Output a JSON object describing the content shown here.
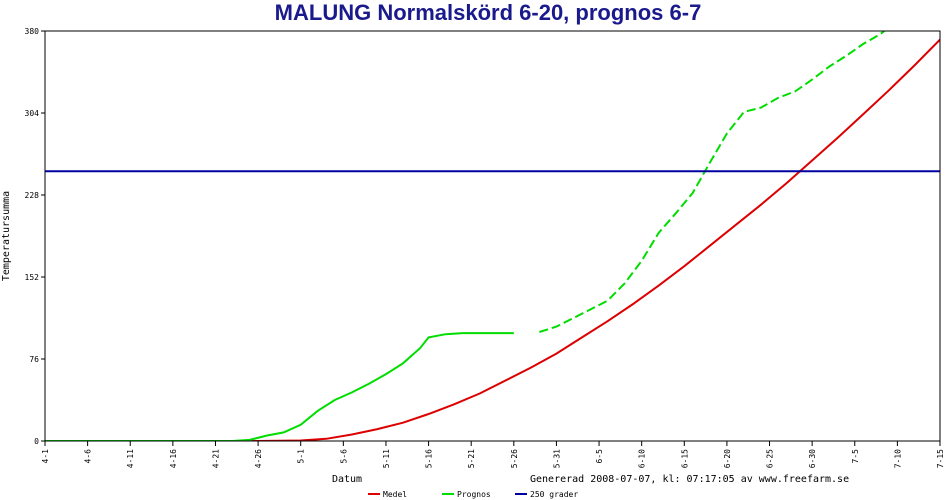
{
  "chart_data": {
    "type": "line",
    "title": "MALUNG Normalskörd 6-20, prognos 6-7",
    "xlabel": "Datum",
    "ylabel": "Temperatursumma",
    "footer": "Genererad 2008-07-07, kl: 07:17:05 av www.freefarm.se",
    "x_ticks": [
      "4-1",
      "4-6",
      "4-11",
      "4-16",
      "4-21",
      "4-26",
      "5-1",
      "5-6",
      "5-11",
      "5-16",
      "5-21",
      "5-26",
      "5-31",
      "6-5",
      "6-10",
      "6-15",
      "6-20",
      "6-25",
      "6-30",
      "7-5",
      "7-10",
      "7-15"
    ],
    "y_ticks": [
      0,
      76,
      152,
      228,
      304,
      380
    ],
    "ylim": [
      0,
      380
    ],
    "xlim_days": [
      0,
      105
    ],
    "grid": false,
    "legend_placement": "bottom",
    "series": [
      {
        "name": "Medel",
        "color": "#dd0000",
        "style": "solid",
        "points": [
          [
            0,
            0
          ],
          [
            25,
            0
          ],
          [
            30,
            0.5
          ],
          [
            33,
            2
          ],
          [
            36,
            6
          ],
          [
            39,
            11
          ],
          [
            42,
            17
          ],
          [
            45,
            25
          ],
          [
            48,
            34
          ],
          [
            51,
            44
          ],
          [
            54,
            56
          ],
          [
            57,
            68
          ],
          [
            60,
            81
          ],
          [
            63,
            96
          ],
          [
            66,
            111
          ],
          [
            69,
            127
          ],
          [
            72,
            144
          ],
          [
            75,
            162
          ],
          [
            78,
            181
          ],
          [
            81,
            200
          ],
          [
            84,
            219
          ],
          [
            87,
            239
          ],
          [
            90,
            260
          ],
          [
            93,
            281
          ],
          [
            96,
            303
          ],
          [
            99,
            325
          ],
          [
            102,
            348
          ],
          [
            105,
            372
          ],
          [
            108,
            396
          ]
        ]
      },
      {
        "name": "Prognos",
        "color": "#00dd00",
        "style": "solid-then-dashed",
        "dash_from_day": 57,
        "points": [
          [
            0,
            0
          ],
          [
            22,
            0
          ],
          [
            24,
            1
          ],
          [
            26,
            5
          ],
          [
            28,
            8
          ],
          [
            30,
            15
          ],
          [
            32,
            28
          ],
          [
            34,
            38
          ],
          [
            36,
            45
          ],
          [
            38,
            53
          ],
          [
            40,
            62
          ],
          [
            42,
            72
          ],
          [
            44,
            86
          ],
          [
            45,
            96
          ],
          [
            47,
            99
          ],
          [
            49,
            100
          ],
          [
            52,
            100
          ],
          [
            55,
            100
          ],
          [
            58,
            101
          ],
          [
            60,
            106
          ],
          [
            62,
            114
          ],
          [
            64,
            122
          ],
          [
            66,
            130
          ],
          [
            68,
            146
          ],
          [
            70,
            167
          ],
          [
            72,
            193
          ],
          [
            74,
            211
          ],
          [
            76,
            230
          ],
          [
            78,
            258
          ],
          [
            80,
            285
          ],
          [
            82,
            305
          ],
          [
            84,
            309
          ],
          [
            86,
            318
          ],
          [
            88,
            324
          ],
          [
            90,
            335
          ],
          [
            92,
            347
          ],
          [
            94,
            357
          ],
          [
            96,
            368
          ],
          [
            98,
            377
          ],
          [
            100,
            390
          ],
          [
            102,
            402
          ]
        ]
      },
      {
        "name": "250 grader",
        "color": "#0000a0",
        "style": "solid",
        "points": [
          [
            0,
            250
          ],
          [
            105,
            250
          ]
        ]
      }
    ]
  }
}
